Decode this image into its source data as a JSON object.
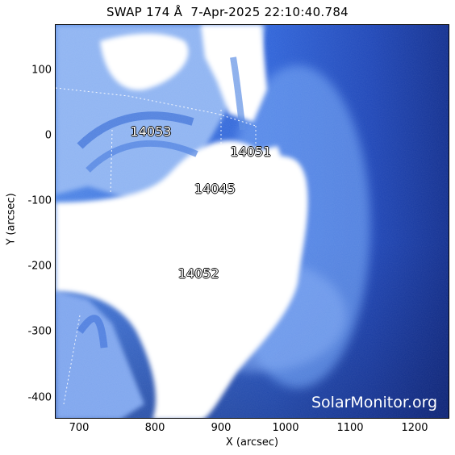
{
  "title": "SWAP 174 Å  7-Apr-2025 22:10:40.784",
  "xlabel": "X (arcsec)",
  "ylabel": "Y (arcsec)",
  "x_ticks": [
    "700",
    "800",
    "900",
    "1000",
    "1100",
    "1200"
  ],
  "y_ticks": [
    "100",
    "0",
    "-100",
    "-200",
    "-300",
    "-400"
  ],
  "active_regions": [
    {
      "id": "14053",
      "x": 795,
      "y": 8
    },
    {
      "id": "14051",
      "x": 948,
      "y": -23
    },
    {
      "id": "14045",
      "x": 893,
      "y": -80
    },
    {
      "id": "14052",
      "x": 868,
      "y": -210
    }
  ],
  "watermark": "SolarMonitor.org",
  "colors": {
    "background": "#ffffff",
    "deep_blue": "#0f2d8a",
    "mid_blue": "#2d62d6",
    "light_blue": "#8fb4f2",
    "saturated": "#ffffff"
  }
}
